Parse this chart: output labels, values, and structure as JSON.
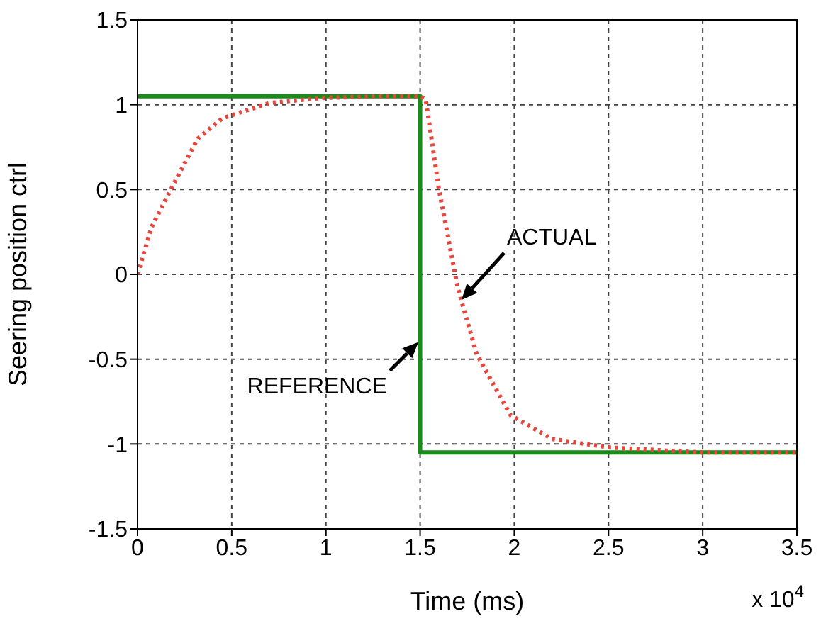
{
  "chart_data": {
    "type": "line",
    "xlabel": "Time (ms)",
    "ylabel": "Seering position ctrl",
    "xlim": [
      0,
      3.5
    ],
    "xticks": [
      0,
      0.5,
      1,
      1.5,
      2,
      2.5,
      3,
      3.5
    ],
    "ylim": [
      -1.5,
      1.5
    ],
    "yticks": [
      -1.5,
      -1,
      -0.5,
      0,
      0.5,
      1,
      1.5
    ],
    "grid": true,
    "series": [
      {
        "type": "line",
        "color": "#1a8a1a",
        "line_style": "solid",
        "x": [
          0,
          1.5,
          1.5,
          3.5
        ],
        "values": [
          1.05,
          1.05,
          -1.05,
          -1.05
        ]
      },
      {
        "type": "line",
        "color": "#e8463c",
        "line_style": "dotted",
        "x": [
          0,
          0.075,
          0.2,
          0.32,
          0.45,
          0.7,
          0.98,
          1.3,
          1.5,
          1.53,
          1.6,
          1.7,
          1.8,
          1.98,
          2.2,
          2.5,
          3,
          3.5
        ],
        "values": [
          0,
          0.28,
          0.55,
          0.8,
          0.92,
          1.01,
          1.04,
          1.05,
          1.05,
          1.03,
          0.5,
          -0.08,
          -0.47,
          -0.83,
          -0.97,
          -1.02,
          -1.05,
          -1.05
        ]
      }
    ],
    "annotations": [
      {
        "text": "ACTUAL",
        "x": 1.72,
        "y": -0.15
      },
      {
        "text": "REFERENCE",
        "x": 1.49,
        "y": -0.4
      },
      "x 10$^{4}$"
    ]
  }
}
